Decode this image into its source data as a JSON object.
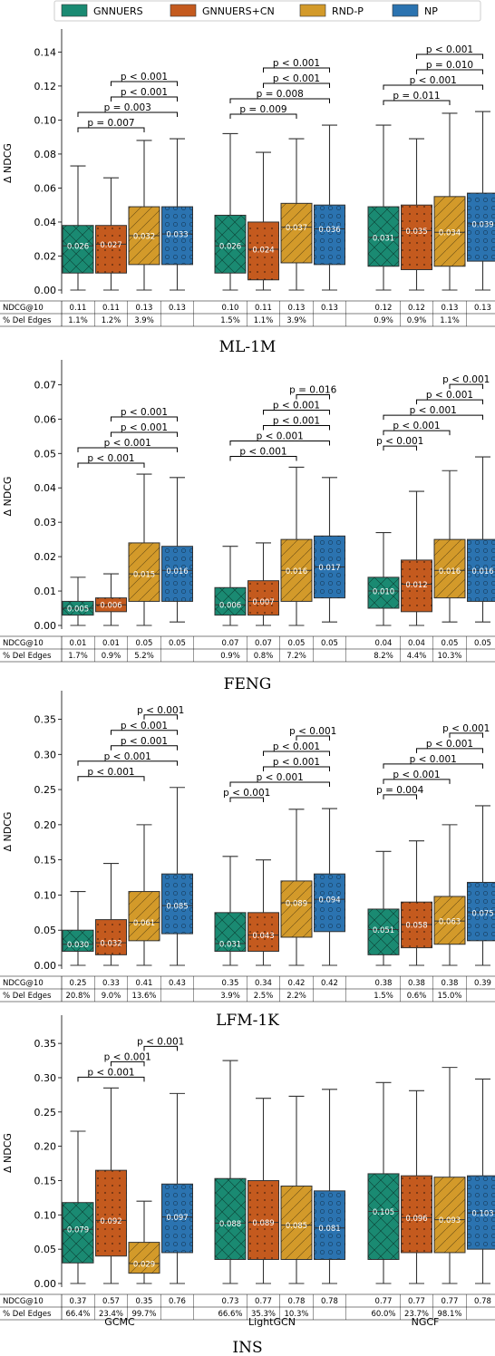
{
  "legend": [
    {
      "name": "GNNUERS",
      "color": "#1a8a72"
    },
    {
      "name": "GNNUERS+CN",
      "color": "#c45a1e"
    },
    {
      "name": "RND-P",
      "color": "#d39a2a"
    },
    {
      "name": "NP",
      "color": "#2b73b0"
    }
  ],
  "row_labels": {
    "ndcg": "NDCG@10",
    "del": "% Del Edges"
  },
  "groups": [
    "GCMC",
    "LightGCN",
    "NGCF"
  ],
  "chart_data": [
    {
      "type": "box",
      "title": "ML-1M",
      "ylabel": "Δ NDCG",
      "ylim": [
        0,
        0.145
      ],
      "yticks": [
        0.0,
        0.02,
        0.04,
        0.06,
        0.08,
        0.1,
        0.12,
        0.14
      ],
      "yticklabels": [
        "0.00",
        "0.02",
        "0.04",
        "0.06",
        "0.08",
        "0.10",
        "0.12",
        "0.14"
      ],
      "boxes": [
        [
          [
            0.0,
            0.01,
            0.026,
            0.038,
            0.073
          ],
          [
            0.0,
            0.01,
            0.027,
            0.038,
            0.066
          ],
          [
            0.0,
            0.015,
            0.032,
            0.049,
            0.088
          ],
          [
            0.0,
            0.015,
            0.033,
            0.049,
            0.089
          ]
        ],
        [
          [
            0.0,
            0.01,
            0.026,
            0.044,
            0.092
          ],
          [
            0.0,
            0.006,
            0.024,
            0.04,
            0.081
          ],
          [
            0.0,
            0.016,
            0.037,
            0.051,
            0.089
          ],
          [
            0.0,
            0.015,
            0.036,
            0.05,
            0.097
          ]
        ],
        [
          [
            0.0,
            0.014,
            0.031,
            0.049,
            0.097
          ],
          [
            0.0,
            0.012,
            0.035,
            0.05,
            0.089
          ],
          [
            0.0,
            0.014,
            0.034,
            0.055,
            0.104
          ],
          [
            0.0,
            0.017,
            0.039,
            0.057,
            0.105
          ]
        ]
      ],
      "medlabels": [
        [
          "0.026",
          "0.027",
          "0.032",
          "0.033"
        ],
        [
          "0.026",
          "0.024",
          "0.037",
          "0.036"
        ],
        [
          "0.031",
          "0.035",
          "0.034",
          "0.039"
        ]
      ],
      "ndcg": [
        [
          "0.11",
          "0.11",
          "0.13",
          "0.13"
        ],
        [
          "0.10",
          "0.11",
          "0.13",
          "0.13"
        ],
        [
          "0.12",
          "0.12",
          "0.13",
          "0.13"
        ]
      ],
      "del": [
        [
          "1.1%",
          "1.2%",
          "3.9%"
        ],
        [
          "1.5%",
          "1.1%",
          "3.9%"
        ],
        [
          "0.9%",
          "0.9%",
          "1.1%"
        ]
      ],
      "sig": [
        [
          {
            "a": 0,
            "b": 2,
            "label": "p = 0.007",
            "lvl": 0
          },
          {
            "a": 0,
            "b": 3,
            "label": "p = 0.003",
            "lvl": 1
          },
          {
            "a": 1,
            "b": 3,
            "label": "p < 0.001",
            "lvl": 2
          },
          {
            "a": 1,
            "b": 3,
            "label": "p < 0.001",
            "lvl": 3
          }
        ],
        [
          {
            "a": 0,
            "b": 2,
            "label": "p = 0.009",
            "lvl": 0
          },
          {
            "a": 0,
            "b": 3,
            "label": "p = 0.008",
            "lvl": 1
          },
          {
            "a": 1,
            "b": 3,
            "label": "p < 0.001",
            "lvl": 2
          },
          {
            "a": 1,
            "b": 3,
            "label": "p < 0.001",
            "lvl": 3
          }
        ],
        [
          {
            "a": 0,
            "b": 2,
            "label": "p = 0.011",
            "lvl": 0
          },
          {
            "a": 0,
            "b": 3,
            "label": "p < 0.001",
            "lvl": 1
          },
          {
            "a": 1,
            "b": 3,
            "label": "p = 0.010",
            "lvl": 2
          },
          {
            "a": 1,
            "b": 3,
            "label": "p < 0.001",
            "lvl": 3
          }
        ]
      ]
    },
    {
      "type": "box",
      "title": "FENG",
      "ylabel": "Δ NDCG",
      "ylim": [
        0,
        0.073
      ],
      "yticks": [
        0.0,
        0.01,
        0.02,
        0.03,
        0.04,
        0.05,
        0.06,
        0.07
      ],
      "yticklabels": [
        "0.00",
        "0.01",
        "0.02",
        "0.03",
        "0.04",
        "0.05",
        "0.06",
        "0.07"
      ],
      "boxes": [
        [
          [
            0.0,
            0.003,
            0.005,
            0.007,
            0.014
          ],
          [
            0.0,
            0.004,
            0.006,
            0.008,
            0.015
          ],
          [
            0.0,
            0.007,
            0.015,
            0.024,
            0.044
          ],
          [
            0.001,
            0.007,
            0.016,
            0.023,
            0.043
          ]
        ],
        [
          [
            0.0,
            0.003,
            0.006,
            0.011,
            0.023
          ],
          [
            0.0,
            0.003,
            0.007,
            0.013,
            0.024
          ],
          [
            0.0,
            0.007,
            0.016,
            0.025,
            0.046
          ],
          [
            0.001,
            0.008,
            0.017,
            0.026,
            0.043
          ]
        ],
        [
          [
            0.0,
            0.005,
            0.01,
            0.014,
            0.027
          ],
          [
            0.0,
            0.004,
            0.012,
            0.019,
            0.039
          ],
          [
            0.001,
            0.008,
            0.016,
            0.025,
            0.045
          ],
          [
            0.001,
            0.007,
            0.016,
            0.025,
            0.049
          ]
        ]
      ],
      "medlabels": [
        [
          "0.005",
          "0.006",
          "0.015",
          "0.016"
        ],
        [
          "0.006",
          "0.007",
          "0.016",
          "0.017"
        ],
        [
          "0.010",
          "0.012",
          "0.016",
          "0.016"
        ]
      ],
      "ndcg": [
        [
          "0.01",
          "0.01",
          "0.05",
          "0.05"
        ],
        [
          "0.07",
          "0.07",
          "0.05",
          "0.05"
        ],
        [
          "0.04",
          "0.04",
          "0.05",
          "0.05"
        ]
      ],
      "del": [
        [
          "1.7%",
          "0.9%",
          "5.2%"
        ],
        [
          "0.9%",
          "0.8%",
          "7.2%"
        ],
        [
          "8.2%",
          "4.4%",
          "10.3%"
        ]
      ],
      "sig": [
        [
          {
            "a": 0,
            "b": 2,
            "label": "p < 0.001",
            "lvl": 0
          },
          {
            "a": 0,
            "b": 3,
            "label": "p < 0.001",
            "lvl": 1
          },
          {
            "a": 1,
            "b": 3,
            "label": "p < 0.001",
            "lvl": 2
          },
          {
            "a": 1,
            "b": 3,
            "label": "p < 0.001",
            "lvl": 3
          }
        ],
        [
          {
            "a": 0,
            "b": 2,
            "label": "p < 0.001",
            "lvl": 0
          },
          {
            "a": 0,
            "b": 3,
            "label": "p < 0.001",
            "lvl": 1
          },
          {
            "a": 1,
            "b": 3,
            "label": "p < 0.001",
            "lvl": 2
          },
          {
            "a": 1,
            "b": 3,
            "label": "p < 0.001",
            "lvl": 3
          },
          {
            "a": 2,
            "b": 3,
            "label": "p = 0.016",
            "lvl": 4
          }
        ],
        [
          {
            "a": 0,
            "b": 1,
            "label": "p < 0.001",
            "lvl": 0
          },
          {
            "a": 0,
            "b": 2,
            "label": "p < 0.001",
            "lvl": 1
          },
          {
            "a": 0,
            "b": 3,
            "label": "p < 0.001",
            "lvl": 2
          },
          {
            "a": 1,
            "b": 3,
            "label": "p < 0.001",
            "lvl": 3
          },
          {
            "a": 2,
            "b": 3,
            "label": "p < 0.001",
            "lvl": 4
          }
        ]
      ]
    },
    {
      "type": "box",
      "title": "LFM-1K",
      "ylabel": "Δ NDCG",
      "ylim": [
        0,
        0.37
      ],
      "yticks": [
        0.0,
        0.05,
        0.1,
        0.15,
        0.2,
        0.25,
        0.3,
        0.35
      ],
      "yticklabels": [
        "0.00",
        "0.05",
        "0.10",
        "0.15",
        "0.20",
        "0.25",
        "0.30",
        "0.35"
      ],
      "boxes": [
        [
          [
            0.0,
            0.02,
            0.03,
            0.05,
            0.105
          ],
          [
            0.0,
            0.015,
            0.032,
            0.065,
            0.145
          ],
          [
            0.0,
            0.035,
            0.061,
            0.105,
            0.2
          ],
          [
            0.0,
            0.045,
            0.085,
            0.13,
            0.253
          ]
        ],
        [
          [
            0.0,
            0.02,
            0.031,
            0.075,
            0.155
          ],
          [
            0.0,
            0.02,
            0.043,
            0.075,
            0.15
          ],
          [
            0.0,
            0.04,
            0.089,
            0.12,
            0.222
          ],
          [
            0.0,
            0.048,
            0.094,
            0.13,
            0.223
          ]
        ],
        [
          [
            0.0,
            0.015,
            0.051,
            0.08,
            0.162
          ],
          [
            0.0,
            0.025,
            0.058,
            0.09,
            0.177
          ],
          [
            0.0,
            0.03,
            0.063,
            0.098,
            0.2
          ],
          [
            0.0,
            0.035,
            0.075,
            0.118,
            0.227
          ]
        ]
      ],
      "medlabels": [
        [
          "0.030",
          "0.032",
          "0.061",
          "0.085"
        ],
        [
          "0.031",
          "0.043",
          "0.089",
          "0.094"
        ],
        [
          "0.051",
          "0.058",
          "0.063",
          "0.075"
        ]
      ],
      "ndcg": [
        [
          "0.25",
          "0.33",
          "0.41",
          "0.43"
        ],
        [
          "0.35",
          "0.34",
          "0.42",
          "0.42"
        ],
        [
          "0.38",
          "0.38",
          "0.38",
          "0.39"
        ]
      ],
      "del": [
        [
          "20.8%",
          "9.0%",
          "13.6%"
        ],
        [
          "3.9%",
          "2.5%",
          "2.2%"
        ],
        [
          "1.5%",
          "0.6%",
          "15.0%"
        ]
      ],
      "sig": [
        [
          {
            "a": 0,
            "b": 2,
            "label": "p < 0.001",
            "lvl": 0
          },
          {
            "a": 0,
            "b": 3,
            "label": "p < 0.001",
            "lvl": 1
          },
          {
            "a": 1,
            "b": 3,
            "label": "p < 0.001",
            "lvl": 2
          },
          {
            "a": 1,
            "b": 3,
            "label": "p < 0.001",
            "lvl": 3
          },
          {
            "a": 2,
            "b": 3,
            "label": "p < 0.001",
            "lvl": 4
          }
        ],
        [
          {
            "a": 0,
            "b": 1,
            "label": "p < 0.001",
            "lvl": 0
          },
          {
            "a": 0,
            "b": 3,
            "label": "p < 0.001",
            "lvl": 1
          },
          {
            "a": 1,
            "b": 3,
            "label": "p < 0.001",
            "lvl": 2
          },
          {
            "a": 1,
            "b": 3,
            "label": "p < 0.001",
            "lvl": 3
          },
          {
            "a": 2,
            "b": 3,
            "label": "p < 0.001",
            "lvl": 4
          }
        ],
        [
          {
            "a": 0,
            "b": 1,
            "label": "p = 0.004",
            "lvl": 0
          },
          {
            "a": 0,
            "b": 2,
            "label": "p < 0.001",
            "lvl": 1
          },
          {
            "a": 0,
            "b": 3,
            "label": "p < 0.001",
            "lvl": 2
          },
          {
            "a": 1,
            "b": 3,
            "label": "p < 0.001",
            "lvl": 3
          },
          {
            "a": 2,
            "b": 3,
            "label": "p < 0.001",
            "lvl": 4
          }
        ]
      ]
    },
    {
      "type": "box",
      "title": "INS",
      "ylabel": "Δ NDCG",
      "ylim": [
        0,
        0.37
      ],
      "yticks": [
        0.0,
        0.05,
        0.1,
        0.15,
        0.2,
        0.25,
        0.3,
        0.35
      ],
      "yticklabels": [
        "0.00",
        "0.05",
        "0.10",
        "0.15",
        "0.20",
        "0.25",
        "0.30",
        "0.35"
      ],
      "boxes": [
        [
          [
            0.0,
            0.03,
            0.079,
            0.118,
            0.222
          ],
          [
            0.0,
            0.04,
            0.092,
            0.165,
            0.285
          ],
          [
            0.0,
            0.015,
            0.029,
            0.06,
            0.12
          ],
          [
            0.0,
            0.045,
            0.097,
            0.145,
            0.277
          ]
        ],
        [
          [
            0.0,
            0.035,
            0.088,
            0.153,
            0.325
          ],
          [
            0.0,
            0.035,
            0.089,
            0.15,
            0.27
          ],
          [
            0.0,
            0.035,
            0.085,
            0.142,
            0.273
          ],
          [
            0.0,
            0.035,
            0.081,
            0.135,
            0.283
          ]
        ],
        [
          [
            0.0,
            0.035,
            0.105,
            0.16,
            0.293
          ],
          [
            0.0,
            0.045,
            0.096,
            0.157,
            0.281
          ],
          [
            0.0,
            0.045,
            0.093,
            0.155,
            0.315
          ],
          [
            0.0,
            0.05,
            0.103,
            0.157,
            0.298
          ]
        ]
      ],
      "medlabels": [
        [
          "0.079",
          "0.092",
          "0.029",
          "0.097"
        ],
        [
          "0.088",
          "0.089",
          "0.085",
          "0.081"
        ],
        [
          "0.105",
          "0.096",
          "0.093",
          "0.103"
        ]
      ],
      "ndcg": [
        [
          "0.37",
          "0.57",
          "0.35",
          "0.76"
        ],
        [
          "0.73",
          "0.77",
          "0.78",
          "0.78"
        ],
        [
          "0.77",
          "0.77",
          "0.77",
          "0.78"
        ]
      ],
      "del": [
        [
          "66.4%",
          "23.4%",
          "99.7%"
        ],
        [
          "66.6%",
          "35.3%",
          "10.3%"
        ],
        [
          "60.0%",
          "23.7%",
          "98.1%"
        ]
      ],
      "sig": [
        [
          {
            "a": 0,
            "b": 2,
            "label": "p < 0.001",
            "lvl": 0
          },
          {
            "a": 1,
            "b": 2,
            "label": "p < 0.001",
            "lvl": 1
          },
          {
            "a": 2,
            "b": 3,
            "label": "p < 0.001",
            "lvl": 2
          }
        ],
        [],
        []
      ]
    }
  ]
}
